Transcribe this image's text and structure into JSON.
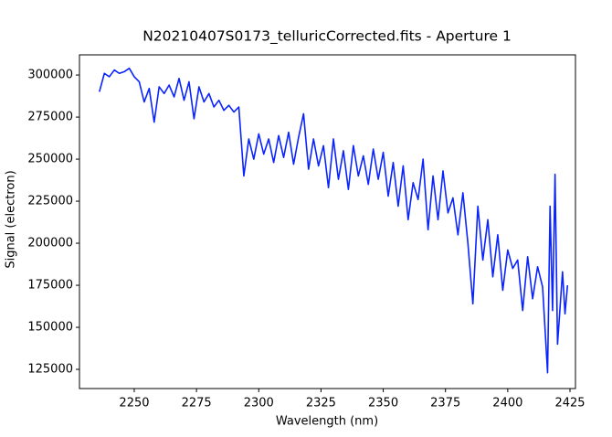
{
  "chart_data": {
    "type": "line",
    "title": "N20210407S0173_telluricCorrected.fits - Aperture 1",
    "xlabel": "Wavelength (nm)",
    "ylabel": "Signal (electron)",
    "x": [
      2236,
      2238,
      2240,
      2242,
      2244,
      2246,
      2248,
      2250,
      2252,
      2254,
      2256,
      2258,
      2260,
      2262,
      2264,
      2266,
      2268,
      2270,
      2272,
      2274,
      2276,
      2278,
      2280,
      2282,
      2284,
      2286,
      2288,
      2290,
      2292,
      2294,
      2296,
      2298,
      2300,
      2302,
      2304,
      2306,
      2308,
      2310,
      2312,
      2314,
      2316,
      2318,
      2320,
      2322,
      2324,
      2326,
      2328,
      2330,
      2332,
      2334,
      2336,
      2338,
      2340,
      2342,
      2344,
      2346,
      2348,
      2350,
      2352,
      2354,
      2356,
      2358,
      2360,
      2362,
      2364,
      2366,
      2368,
      2370,
      2372,
      2374,
      2376,
      2378,
      2380,
      2382,
      2384,
      2386,
      2388,
      2390,
      2392,
      2394,
      2396,
      2398,
      2400,
      2402,
      2404,
      2406,
      2408,
      2410,
      2412,
      2414,
      2416,
      2417,
      2418,
      2419,
      2420,
      2422,
      2423,
      2424
    ],
    "series": [
      {
        "color": "#0a24ff",
        "values": [
          290000,
          301000,
          299000,
          303000,
          301000,
          302000,
          304000,
          299000,
          296000,
          284000,
          292000,
          272000,
          293000,
          289000,
          294000,
          287000,
          298000,
          285000,
          296000,
          274000,
          293000,
          284000,
          289000,
          281000,
          285000,
          279000,
          282000,
          278000,
          281000,
          240000,
          262000,
          250000,
          265000,
          253000,
          262000,
          248000,
          264000,
          251000,
          266000,
          247000,
          263000,
          277000,
          244000,
          262000,
          246000,
          258000,
          233000,
          262000,
          238000,
          255000,
          232000,
          258000,
          240000,
          252000,
          235000,
          256000,
          238000,
          254000,
          228000,
          248000,
          222000,
          246000,
          214000,
          236000,
          226000,
          250000,
          208000,
          240000,
          214000,
          243000,
          218000,
          227000,
          205000,
          230000,
          200000,
          164000,
          222000,
          190000,
          214000,
          180000,
          205000,
          172000,
          196000,
          185000,
          190000,
          160000,
          192000,
          167000,
          186000,
          174000,
          123000,
          222000,
          160000,
          241000,
          140000,
          183000,
          158000,
          175000
        ]
      }
    ],
    "xlim": [
      2228,
      2427.2
    ],
    "ylim": [
      113600,
      312000
    ],
    "xticks": [
      2250,
      2275,
      2300,
      2325,
      2350,
      2375,
      2400,
      2425
    ],
    "yticks": [
      125000,
      150000,
      175000,
      200000,
      225000,
      250000,
      275000,
      300000
    ]
  }
}
